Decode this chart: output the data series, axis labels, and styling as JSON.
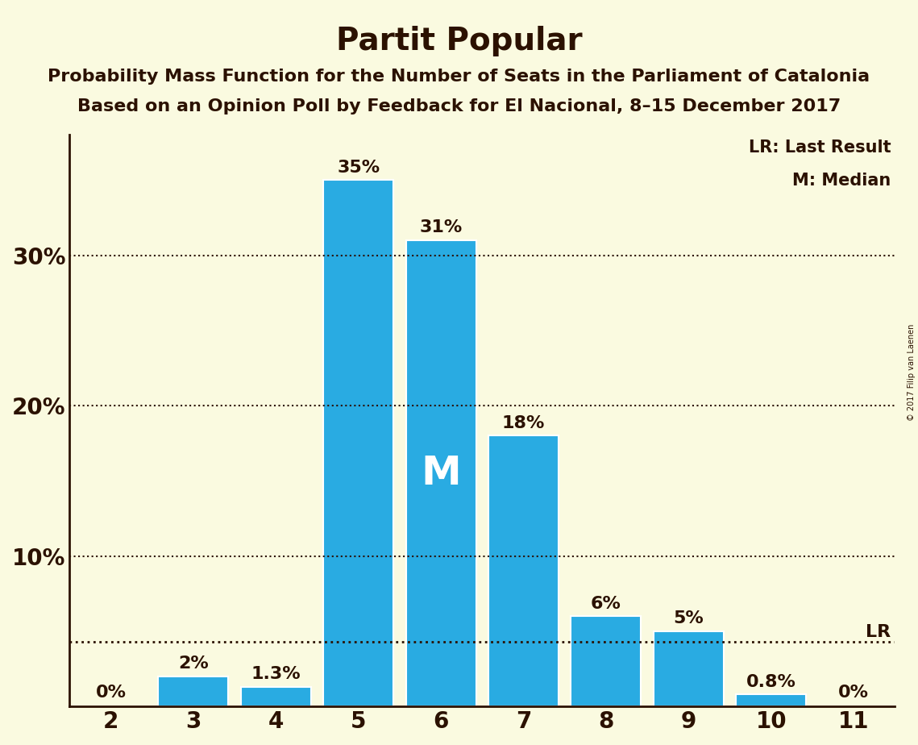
{
  "title": "Partit Popular",
  "subtitle1": "Probability Mass Function for the Number of Seats in the Parliament of Catalonia",
  "subtitle2": "Based on an Opinion Poll by Feedback for El Nacional, 8–15 December 2017",
  "copyright": "© 2017 Filip van Laenen",
  "categories": [
    2,
    3,
    4,
    5,
    6,
    7,
    8,
    9,
    10,
    11
  ],
  "values": [
    0.0,
    2.0,
    1.3,
    35.0,
    31.0,
    18.0,
    6.0,
    5.0,
    0.8,
    0.0
  ],
  "labels": [
    "0%",
    "2%",
    "1.3%",
    "35%",
    "31%",
    "18%",
    "6%",
    "5%",
    "0.8%",
    "0%"
  ],
  "bar_color": "#29ABE2",
  "bar_edge_color": "#FFFFFF",
  "background_color": "#FAFAE0",
  "text_color": "#2B1100",
  "title_fontsize": 28,
  "subtitle_fontsize": 16,
  "label_fontsize": 16,
  "tick_fontsize": 20,
  "ytick_labels": [
    "",
    "10%",
    "20%",
    "30%"
  ],
  "ytick_values": [
    0,
    10,
    20,
    30
  ],
  "ylim": [
    0,
    38
  ],
  "lr_value": 4.3,
  "lr_label": "LR",
  "lr_label_right": "LR: Last Result",
  "median_value": 6,
  "median_label": "M",
  "median_label_right": "M: Median",
  "dotted_line_color": "#2B1100",
  "xlim": [
    1.5,
    11.5
  ]
}
